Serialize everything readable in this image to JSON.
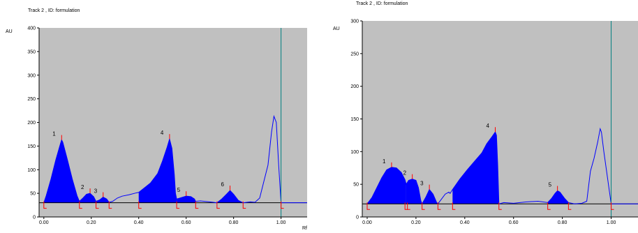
{
  "chart_data": [
    {
      "type": "area",
      "title": "Track  2 , ID: formulation",
      "ylabel": "AU",
      "xlabel": "Rf",
      "xlim": [
        -0.02,
        1.11
      ],
      "ylim": [
        0,
        400
      ],
      "xticks": [
        "0.00",
        "0.20",
        "0.40",
        "0.60",
        "0.80",
        "1.00"
      ],
      "xtick_values": [
        0,
        0.2,
        0.4,
        0.6,
        0.8,
        1.0
      ],
      "yticks": [
        "0",
        "50",
        "100",
        "150",
        "200",
        "250",
        "300",
        "350",
        "400"
      ],
      "ytick_values": [
        0,
        50,
        100,
        150,
        200,
        250,
        300,
        350,
        400
      ],
      "baseline": 30,
      "front_line_x": 1.0,
      "colors": {
        "plot_bg": "#c0c0c0",
        "trace": "#0000ff",
        "fill": "#0000ff",
        "marker": "#ff0000",
        "front_line": "#008080",
        "baseline": "#000000"
      },
      "trace": [
        [
          0.0,
          30
        ],
        [
          0.01,
          45
        ],
        [
          0.03,
          80
        ],
        [
          0.05,
          120
        ],
        [
          0.07,
          155
        ],
        [
          0.075,
          163
        ],
        [
          0.08,
          158
        ],
        [
          0.1,
          120
        ],
        [
          0.12,
          80
        ],
        [
          0.14,
          45
        ],
        [
          0.15,
          33
        ],
        [
          0.165,
          40
        ],
        [
          0.18,
          48
        ],
        [
          0.195,
          50
        ],
        [
          0.21,
          43
        ],
        [
          0.22,
          33
        ],
        [
          0.235,
          36
        ],
        [
          0.25,
          42
        ],
        [
          0.265,
          38
        ],
        [
          0.275,
          31
        ],
        [
          0.29,
          33
        ],
        [
          0.31,
          40
        ],
        [
          0.33,
          44
        ],
        [
          0.36,
          47
        ],
        [
          0.39,
          51
        ],
        [
          0.4,
          52
        ],
        [
          0.42,
          60
        ],
        [
          0.45,
          72
        ],
        [
          0.48,
          92
        ],
        [
          0.5,
          118
        ],
        [
          0.52,
          148
        ],
        [
          0.53,
          165
        ],
        [
          0.54,
          145
        ],
        [
          0.55,
          90
        ],
        [
          0.555,
          50
        ],
        [
          0.56,
          38
        ],
        [
          0.58,
          41
        ],
        [
          0.6,
          44
        ],
        [
          0.62,
          43
        ],
        [
          0.635,
          38
        ],
        [
          0.64,
          33
        ],
        [
          0.66,
          34
        ],
        [
          0.7,
          32
        ],
        [
          0.73,
          30
        ],
        [
          0.75,
          38
        ],
        [
          0.77,
          48
        ],
        [
          0.785,
          56
        ],
        [
          0.8,
          48
        ],
        [
          0.82,
          35
        ],
        [
          0.84,
          30
        ],
        [
          0.87,
          32
        ],
        [
          0.89,
          31
        ],
        [
          0.91,
          40
        ],
        [
          0.93,
          80
        ],
        [
          0.945,
          110
        ],
        [
          0.96,
          180
        ],
        [
          0.97,
          213
        ],
        [
          0.98,
          200
        ],
        [
          0.99,
          110
        ],
        [
          1.0,
          30
        ],
        [
          1.11,
          30
        ]
      ],
      "peaks": [
        {
          "label": "1",
          "start": 0.0,
          "max": 0.075,
          "end": 0.15,
          "height": 163
        },
        {
          "label": "2",
          "start": 0.15,
          "max": 0.195,
          "end": 0.22,
          "height": 50
        },
        {
          "label": "3",
          "start": 0.22,
          "max": 0.25,
          "end": 0.275,
          "height": 42
        },
        {
          "label": "4",
          "start": 0.4,
          "max": 0.53,
          "end": 0.56,
          "height": 165
        },
        {
          "label": "5",
          "start": 0.56,
          "max": 0.6,
          "end": 0.64,
          "height": 44
        },
        {
          "label": "6",
          "start": 0.73,
          "max": 0.785,
          "end": 0.84,
          "height": 56
        }
      ],
      "markers_x": [
        0.0,
        0.15,
        0.22,
        0.275,
        0.4,
        0.56,
        0.64,
        0.73,
        0.84,
        1.0
      ]
    },
    {
      "type": "area",
      "title": "Track  2 , ID: formulation",
      "ylabel": "AU",
      "xlabel": "",
      "xlim": [
        -0.02,
        1.11
      ],
      "ylim": [
        0,
        300
      ],
      "xticks": [
        "0.00",
        "0.20",
        "0.40",
        "0.60",
        "0.80",
        "1.00"
      ],
      "xtick_values": [
        0,
        0.2,
        0.4,
        0.6,
        0.8,
        1.0
      ],
      "yticks": [
        "0",
        "50",
        "100",
        "150",
        "200",
        "250",
        "300"
      ],
      "ytick_values": [
        0,
        50,
        100,
        150,
        200,
        250,
        300
      ],
      "baseline": 20,
      "front_line_x": 1.0,
      "colors": {
        "plot_bg": "#c0c0c0",
        "trace": "#0000ff",
        "fill": "#0000ff",
        "marker": "#ff0000",
        "front_line": "#008080",
        "baseline": "#000000"
      },
      "trace": [
        [
          0.0,
          20
        ],
        [
          0.02,
          30
        ],
        [
          0.04,
          45
        ],
        [
          0.06,
          60
        ],
        [
          0.08,
          72
        ],
        [
          0.1,
          76
        ],
        [
          0.12,
          75
        ],
        [
          0.14,
          68
        ],
        [
          0.155,
          57
        ],
        [
          0.16,
          50
        ],
        [
          0.17,
          56
        ],
        [
          0.185,
          58
        ],
        [
          0.2,
          56
        ],
        [
          0.21,
          45
        ],
        [
          0.22,
          25
        ],
        [
          0.225,
          20
        ],
        [
          0.24,
          30
        ],
        [
          0.255,
          42
        ],
        [
          0.27,
          35
        ],
        [
          0.285,
          22
        ],
        [
          0.29,
          20
        ],
        [
          0.3,
          25
        ],
        [
          0.32,
          35
        ],
        [
          0.335,
          38
        ],
        [
          0.34,
          36
        ],
        [
          0.35,
          42
        ],
        [
          0.38,
          58
        ],
        [
          0.41,
          72
        ],
        [
          0.44,
          85
        ],
        [
          0.47,
          98
        ],
        [
          0.49,
          112
        ],
        [
          0.51,
          122
        ],
        [
          0.525,
          130
        ],
        [
          0.53,
          125
        ],
        [
          0.535,
          80
        ],
        [
          0.54,
          20
        ],
        [
          0.56,
          22
        ],
        [
          0.6,
          21
        ],
        [
          0.65,
          23
        ],
        [
          0.7,
          24
        ],
        [
          0.74,
          22
        ],
        [
          0.755,
          28
        ],
        [
          0.77,
          36
        ],
        [
          0.78,
          40
        ],
        [
          0.79,
          38
        ],
        [
          0.81,
          28
        ],
        [
          0.825,
          22
        ],
        [
          0.85,
          20
        ],
        [
          0.88,
          21
        ],
        [
          0.9,
          24
        ],
        [
          0.915,
          70
        ],
        [
          0.93,
          90
        ],
        [
          0.945,
          115
        ],
        [
          0.955,
          135
        ],
        [
          0.96,
          130
        ],
        [
          0.97,
          100
        ],
        [
          0.985,
          60
        ],
        [
          1.0,
          20
        ],
        [
          1.11,
          20
        ]
      ],
      "peaks": [
        {
          "label": "1",
          "start": 0.0,
          "max": 0.1,
          "end": 0.16,
          "height": 76
        },
        {
          "label": "2",
          "start": 0.16,
          "max": 0.185,
          "end": 0.225,
          "height": 58
        },
        {
          "label": "3",
          "start": 0.225,
          "max": 0.255,
          "end": 0.29,
          "height": 42
        },
        {
          "label": "4",
          "start": 0.35,
          "max": 0.525,
          "end": 0.54,
          "height": 130
        },
        {
          "label": "5",
          "start": 0.74,
          "max": 0.78,
          "end": 0.825,
          "height": 40
        }
      ],
      "markers_x": [
        0.0,
        0.155,
        0.165,
        0.225,
        0.29,
        0.35,
        0.54,
        0.74,
        0.825,
        1.0
      ]
    }
  ]
}
